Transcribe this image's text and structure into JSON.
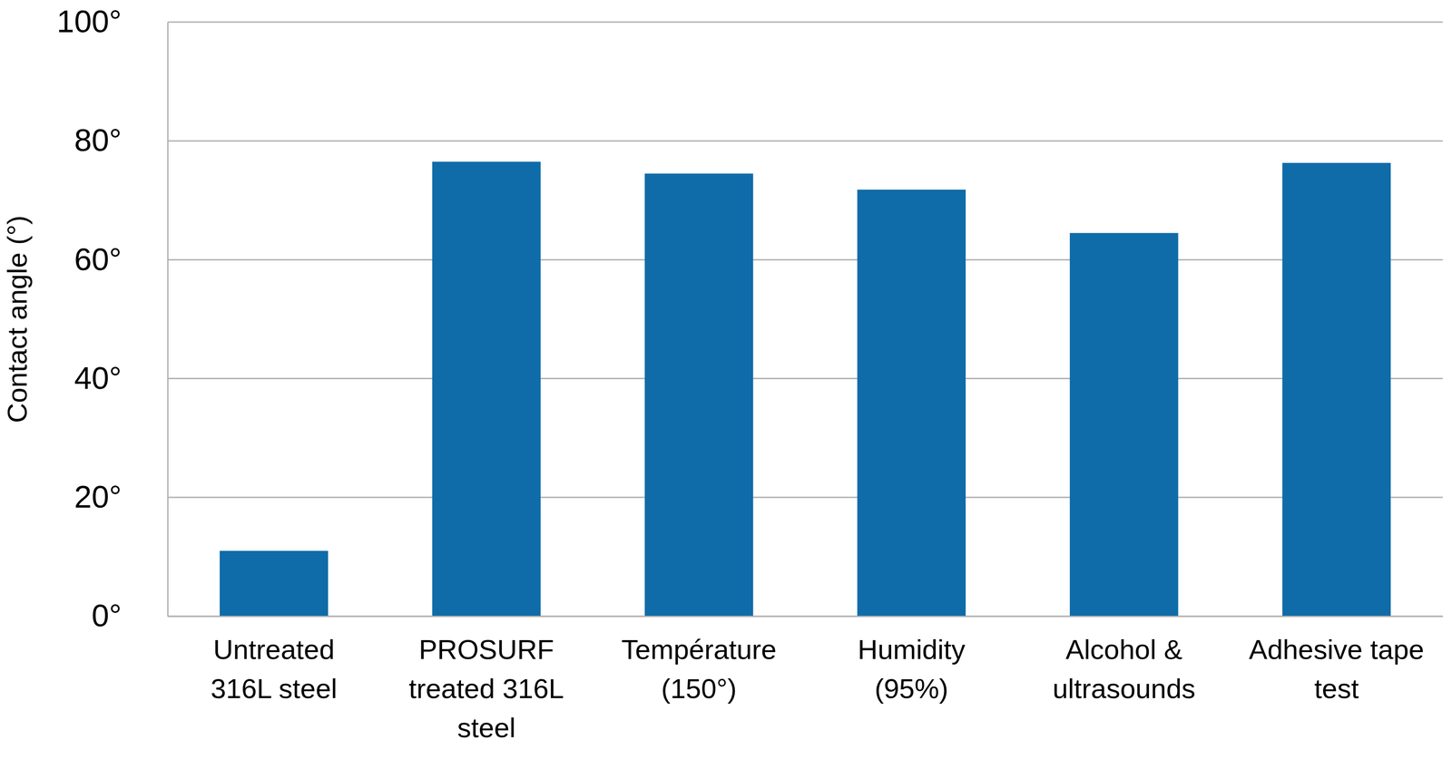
{
  "chart_data": {
    "type": "bar",
    "y_label": "Contact angle (°)",
    "categories": [
      "Untreated 316L steel",
      "PROSURF treated 316L steel",
      "Température (150°)",
      "Humidity (95%)",
      "Alcohol & ultrasounds",
      "Adhesive tape test"
    ],
    "values": [
      11,
      76.5,
      74.5,
      71.8,
      64.5,
      76.3
    ],
    "color": "#0f6ca8",
    "ylim": [
      0,
      100
    ],
    "yticks": [
      {
        "value": 0,
        "label": "0°"
      },
      {
        "value": 20,
        "label": "20°"
      },
      {
        "value": 40,
        "label": "40°"
      },
      {
        "value": 60,
        "label": "60°"
      },
      {
        "value": 80,
        "label": "80°"
      },
      {
        "value": 100,
        "label": "100°"
      }
    ],
    "grid": true
  }
}
